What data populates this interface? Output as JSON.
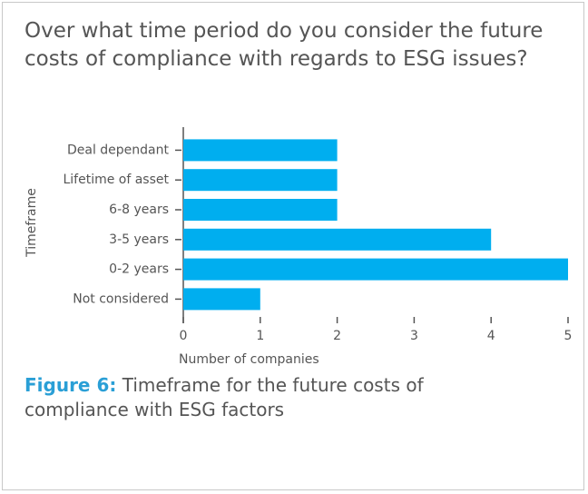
{
  "chart_data": {
    "type": "barh",
    "title": "Over what time period do you consider the future costs of compliance with regards to ESG issues?",
    "categories": [
      "Deal dependant",
      "Lifetime of asset",
      "6-8 years",
      "3-5 years",
      "0-2 years",
      "Not considered"
    ],
    "values": [
      2,
      2,
      2,
      4,
      5,
      1
    ],
    "color": "#00aeef",
    "xlim": [
      0,
      5
    ],
    "xticks": [
      0,
      1,
      2,
      3,
      4,
      5
    ],
    "x_label": "Number of companies",
    "y_label": "Timeframe",
    "caption_label": "Figure 6:",
    "caption": "Timeframe for the future costs of compliance with ESG factors"
  }
}
